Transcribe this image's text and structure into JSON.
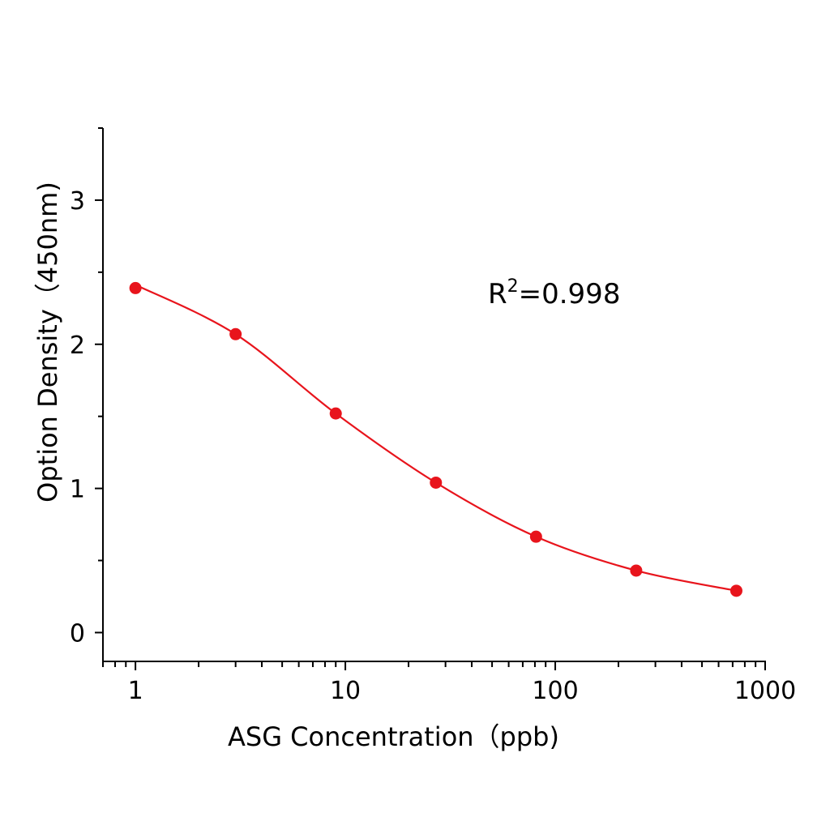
{
  "chart_data": {
    "type": "scatter",
    "title": "",
    "xlabel": "ASG Concentration（ppb)",
    "ylabel": "Option Density（450nm)",
    "xscale": "log",
    "xlim": [
      0.7,
      1000
    ],
    "ylim": [
      -0.2,
      3.5
    ],
    "xticks": [
      1,
      10,
      100,
      1000
    ],
    "xtick_labels": [
      "1",
      "10",
      "100",
      "1000"
    ],
    "yticks": [
      0,
      1,
      2,
      3
    ],
    "ytick_labels": [
      "0",
      "1",
      "2",
      "3"
    ],
    "grid": false,
    "color": "#e8141c",
    "annotation": {
      "prefix": "R",
      "sup": "2",
      "suffix": "=0.998"
    },
    "series": [
      {
        "x": [
          1,
          3,
          9,
          27,
          81,
          243,
          729
        ],
        "y": [
          2.39,
          2.07,
          1.52,
          1.04,
          0.665,
          0.43,
          0.29
        ],
        "fit": "four-parameter logistic curve"
      }
    ]
  }
}
